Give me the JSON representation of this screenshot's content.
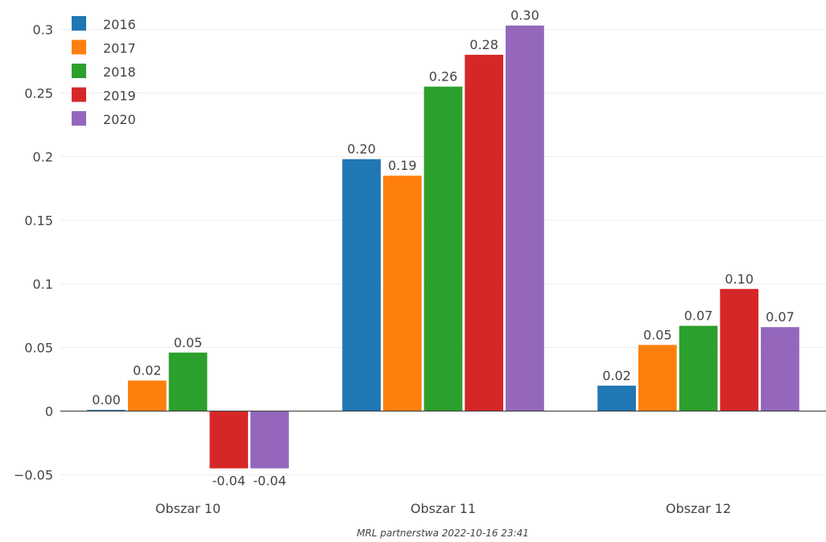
{
  "chart_data": {
    "type": "bar",
    "categories": [
      "Obszar 10",
      "Obszar 11",
      "Obszar 12"
    ],
    "series": [
      {
        "name": "2016",
        "color": "#1f77b4",
        "values": [
          0.001,
          0.198,
          0.02
        ],
        "labels": [
          "0.00",
          "0.20",
          "0.02"
        ]
      },
      {
        "name": "2017",
        "color": "#ff7f0e",
        "values": [
          0.024,
          0.185,
          0.052
        ],
        "labels": [
          "0.02",
          "0.19",
          "0.05"
        ]
      },
      {
        "name": "2018",
        "color": "#2ca02c",
        "values": [
          0.046,
          0.255,
          0.067
        ],
        "labels": [
          "0.05",
          "0.26",
          "0.07"
        ]
      },
      {
        "name": "2019",
        "color": "#d62728",
        "values": [
          -0.045,
          0.28,
          0.096
        ],
        "labels": [
          "-0.04",
          "0.28",
          "0.10"
        ]
      },
      {
        "name": "2020",
        "color": "#9467bd",
        "values": [
          -0.045,
          0.303,
          0.066
        ],
        "labels": [
          "-0.04",
          "0.30",
          "0.07"
        ]
      }
    ],
    "yticks": [
      -0.05,
      0,
      0.05,
      0.1,
      0.15,
      0.2,
      0.25,
      0.3
    ],
    "ytick_labels": [
      "−0.05",
      "0",
      "0.05",
      "0.1",
      "0.15",
      "0.2",
      "0.25",
      "0.3"
    ],
    "ylim": [
      -0.063,
      0.318
    ],
    "grid": true,
    "legend_position": "top-left"
  },
  "footer": "MRL partnerstwa 2022-10-16 23:41"
}
